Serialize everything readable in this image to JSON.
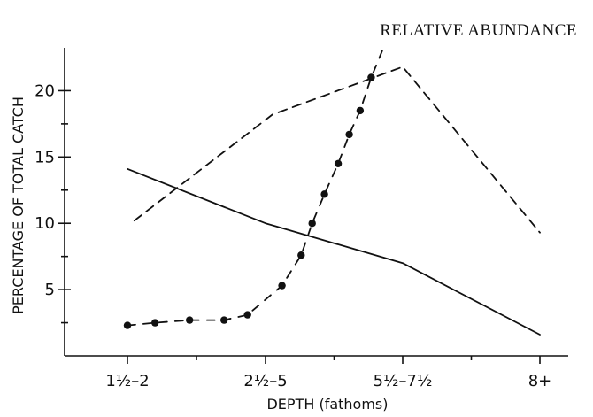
{
  "chart_data": {
    "type": "line",
    "title": "RELATIVE ABUNDANCE",
    "xlabel": "DEPTH (fathoms)",
    "ylabel": "PERCENTAGE OF TOTAL CATCH",
    "categories": [
      "1½–2",
      "2½–5",
      "5½–7½",
      "8+"
    ],
    "ylim": [
      0,
      22
    ],
    "yticks": [
      5,
      10,
      15,
      20
    ],
    "grid": false,
    "series": [
      {
        "style": "dashed",
        "x": [
          0.05,
          1.05,
          2.0,
          3.0
        ],
        "y": [
          10.2,
          18.2,
          21.8,
          9.3
        ]
      },
      {
        "style": "solid",
        "x": [
          0.0,
          1.0,
          2.0,
          3.0
        ],
        "y": [
          14.1,
          10.0,
          7.0,
          1.6
        ]
      },
      {
        "style": "dash-dot",
        "markers": true,
        "x": [
          0.0,
          0.2,
          0.45,
          0.7,
          0.87,
          1.12,
          1.26,
          1.34,
          1.43,
          1.53,
          1.61,
          1.69,
          1.77
        ],
        "y": [
          2.3,
          2.5,
          2.7,
          2.7,
          3.1,
          5.3,
          7.6,
          10.0,
          12.2,
          14.5,
          16.7,
          18.5,
          21.0
        ],
        "extends_to": {
          "x": 1.85,
          "y": 23.0
        }
      }
    ]
  }
}
